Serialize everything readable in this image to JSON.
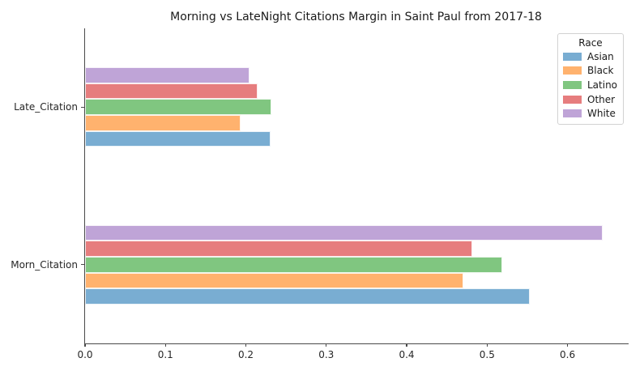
{
  "title": "Morning vs LateNight Citations Margin in Saint Paul from 2017-18",
  "legend": {
    "title": "Race",
    "entries": [
      {
        "label": "Asian",
        "color": "#79ADD2"
      },
      {
        "label": "Black",
        "color": "#FFB26E"
      },
      {
        "label": "Latino",
        "color": "#80C680"
      },
      {
        "label": "Other",
        "color": "#E67D7E"
      },
      {
        "label": "White",
        "color": "#BFA4D7"
      }
    ]
  },
  "chart_data": {
    "type": "bar",
    "orientation": "horizontal",
    "title": "Morning vs LateNight Citations Margin in Saint Paul from 2017-18",
    "categories": [
      "Late_Citation",
      "Morn_Citation"
    ],
    "series": [
      {
        "name": "Asian",
        "color": "#79ADD2",
        "values": [
          0.231,
          0.553
        ]
      },
      {
        "name": "Black",
        "color": "#FFB26E",
        "values": [
          0.193,
          0.47
        ]
      },
      {
        "name": "Latino",
        "color": "#80C680",
        "values": [
          0.232,
          0.519
        ]
      },
      {
        "name": "Other",
        "color": "#E67D7E",
        "values": [
          0.215,
          0.482
        ]
      },
      {
        "name": "White",
        "color": "#BFA4D7",
        "values": [
          0.205,
          0.644
        ]
      }
    ],
    "xlabel": "",
    "ylabel": "",
    "xlim": [
      0.0,
      0.676
    ],
    "xticks": [
      0.0,
      0.1,
      0.2,
      0.3,
      0.4,
      0.5,
      0.6
    ],
    "xtick_labels": [
      "0.0",
      "0.1",
      "0.2",
      "0.3",
      "0.4",
      "0.5",
      "0.6"
    ],
    "legend_title": "Race",
    "legend_position": "upper right",
    "grid": false,
    "bar_stack_order_top_to_bottom": [
      "White",
      "Other",
      "Latino",
      "Black",
      "Asian"
    ]
  }
}
